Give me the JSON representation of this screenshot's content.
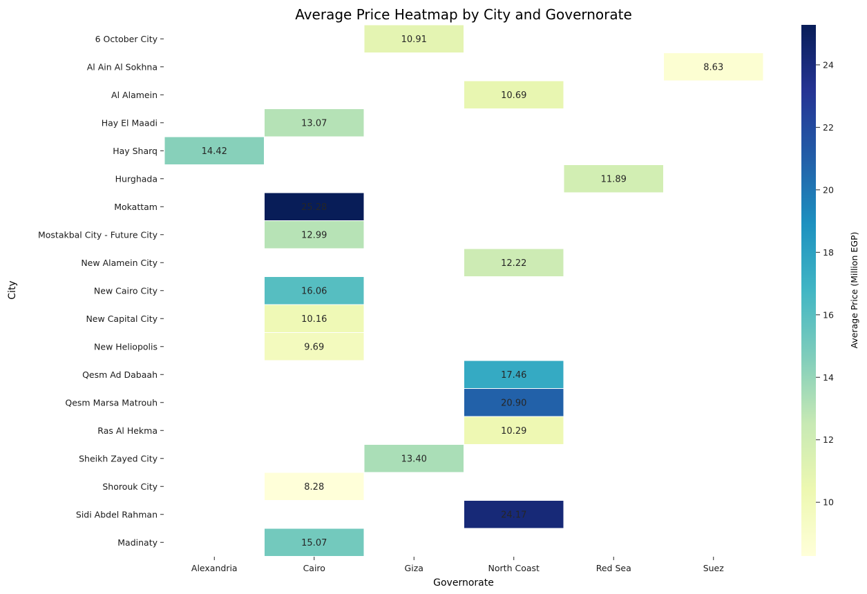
{
  "chart_data": {
    "type": "heatmap",
    "title": "Average Price Heatmap by City and Governorate",
    "xlabel": "Governorate",
    "ylabel": "City",
    "colorbar_label": "Average Price (Million EGP)",
    "colormap": "YlGnBu",
    "value_range": [
      8.28,
      25.28
    ],
    "colorbar_ticks": [
      "10",
      "12",
      "14",
      "16",
      "18",
      "20",
      "22",
      "24"
    ],
    "columns": [
      "Alexandria",
      "Cairo",
      "Giza",
      "North Coast",
      "Red Sea",
      "Suez"
    ],
    "rows": [
      "6 October City",
      "Al Ain Al Sokhna",
      "Al Alamein",
      "Hay El Maadi",
      "Hay Sharq",
      "Hurghada",
      "Mokattam",
      "Mostakbal City - Future City",
      "New Alamein City",
      "New Cairo City",
      "New Capital City",
      "New Heliopolis",
      "Qesm Ad Dabaah",
      "Qesm Marsa Matrouh",
      "Ras Al Hekma",
      "Sheikh Zayed City",
      "Shorouk City",
      "Sidi Abdel Rahman",
      "Madinaty"
    ],
    "values": [
      [
        null,
        null,
        10.91,
        null,
        null,
        null
      ],
      [
        null,
        null,
        null,
        null,
        null,
        8.63
      ],
      [
        null,
        null,
        null,
        10.69,
        null,
        null
      ],
      [
        null,
        13.07,
        null,
        null,
        null,
        null
      ],
      [
        14.42,
        null,
        null,
        null,
        null,
        null
      ],
      [
        null,
        null,
        null,
        null,
        11.89,
        null
      ],
      [
        null,
        25.28,
        null,
        null,
        null,
        null
      ],
      [
        null,
        12.99,
        null,
        null,
        null,
        null
      ],
      [
        null,
        null,
        null,
        12.22,
        null,
        null
      ],
      [
        null,
        16.06,
        null,
        null,
        null,
        null
      ],
      [
        null,
        10.16,
        null,
        null,
        null,
        null
      ],
      [
        null,
        9.69,
        null,
        null,
        null,
        null
      ],
      [
        null,
        null,
        null,
        17.46,
        null,
        null
      ],
      [
        null,
        null,
        null,
        20.9,
        null,
        null
      ],
      [
        null,
        null,
        null,
        10.29,
        null,
        null
      ],
      [
        null,
        null,
        13.4,
        null,
        null,
        null
      ],
      [
        null,
        8.28,
        null,
        null,
        null,
        null
      ],
      [
        null,
        null,
        null,
        24.17,
        null,
        null
      ],
      [
        null,
        15.07,
        null,
        null,
        null,
        null
      ]
    ]
  }
}
